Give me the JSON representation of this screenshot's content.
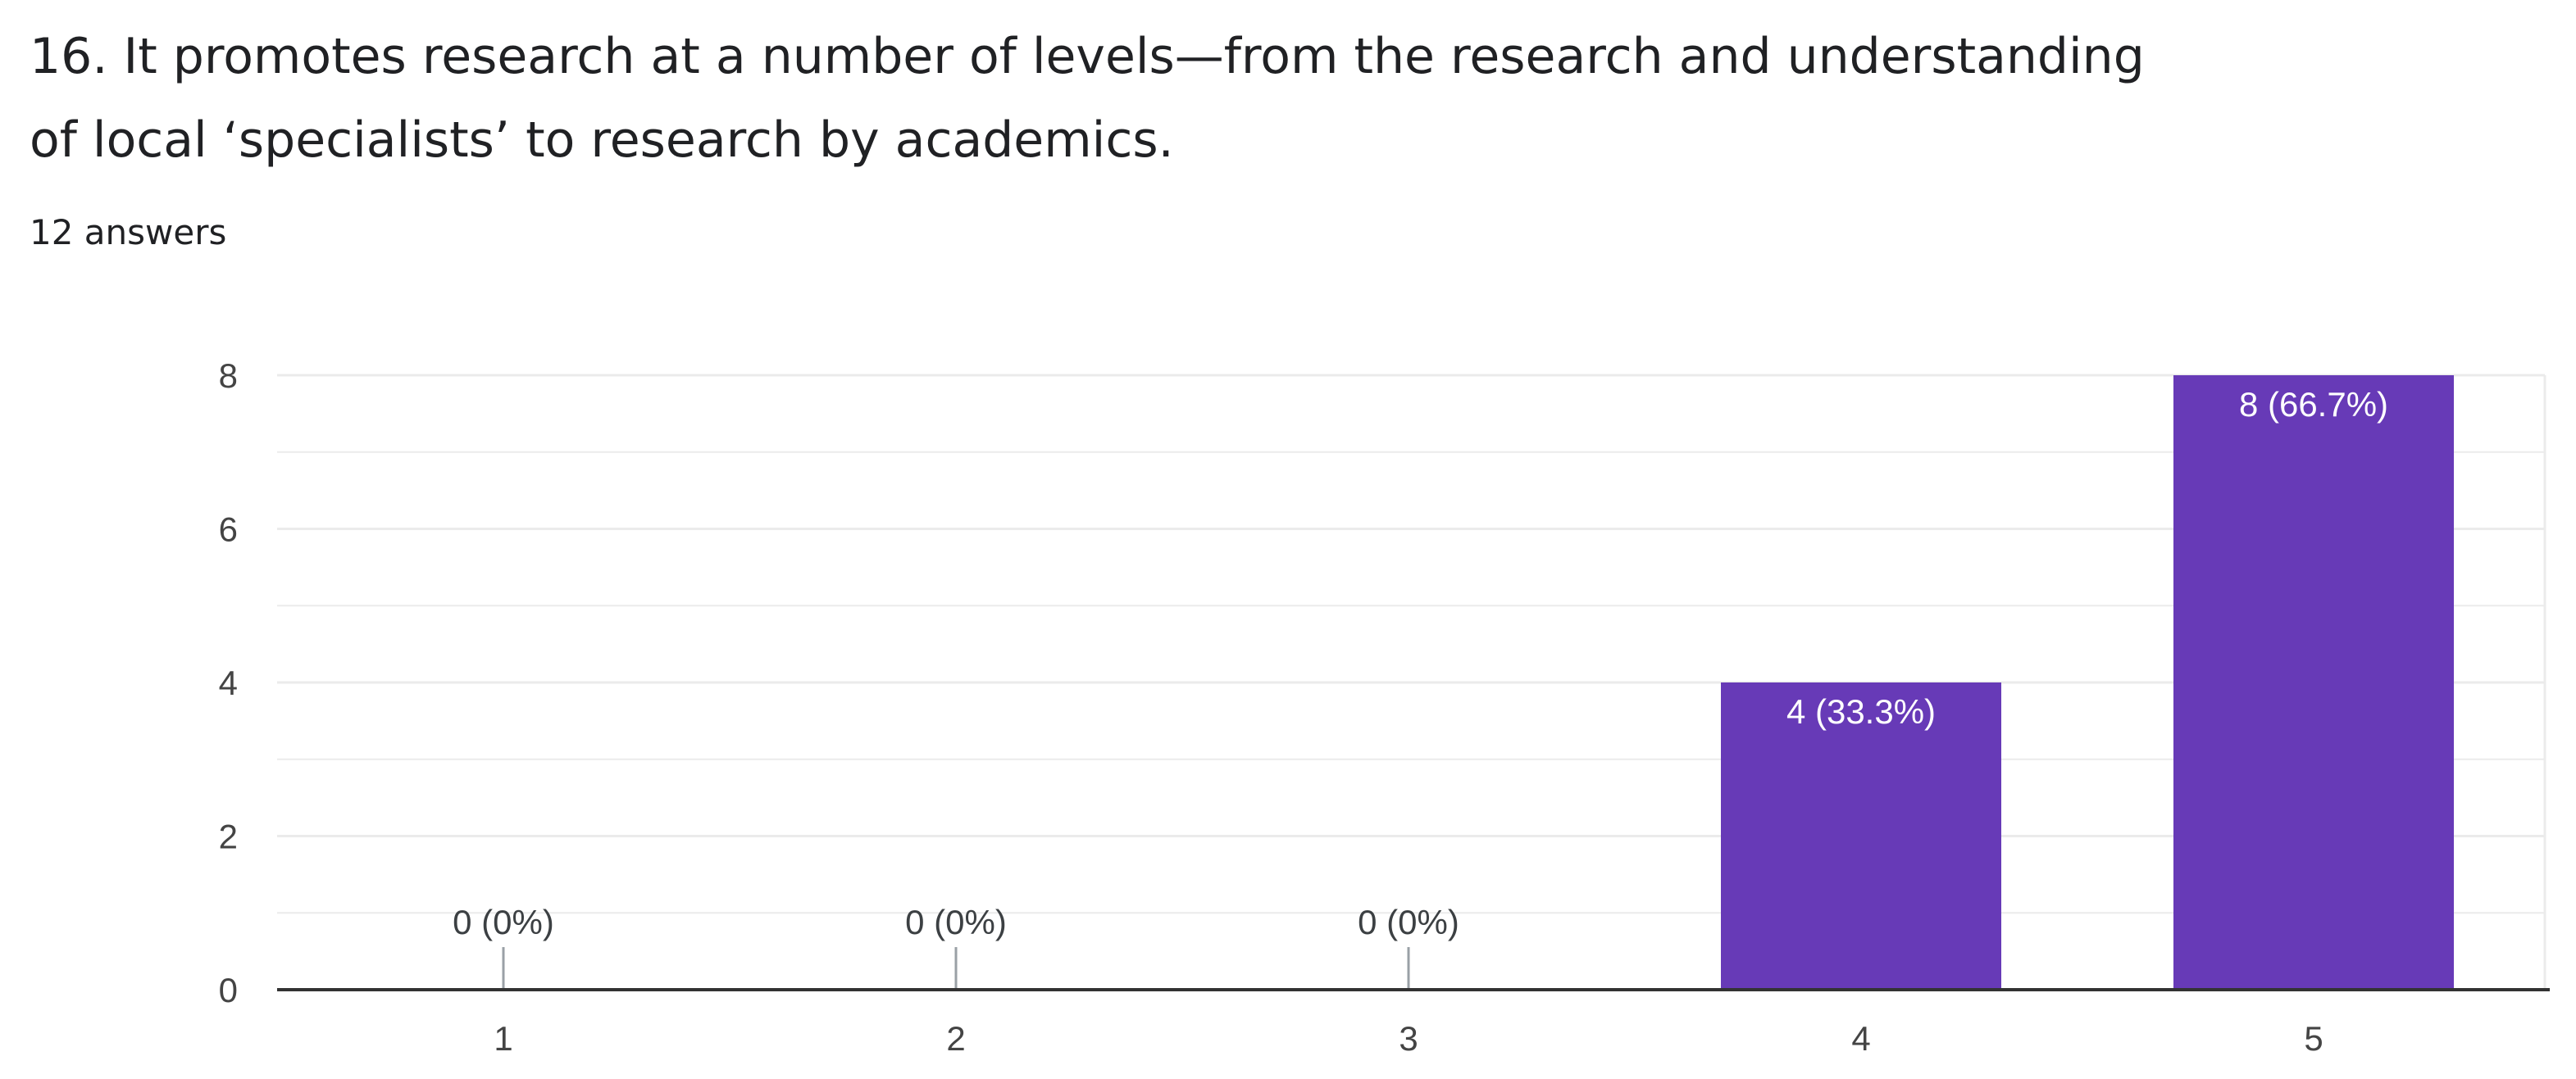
{
  "question": {
    "title_line_1": "16. It promotes research at a number of levels—from the research and understanding",
    "title_line_2": "of local ‘specialists’ to research by academics.",
    "response_count": "12 answers"
  },
  "colors": {
    "bar": "#673ab7",
    "bar_label_inside": "#ffffff",
    "bar_label_outside": "#3c4043",
    "axis_line": "#333333",
    "gridline": "#ebebeb",
    "tick_label": "#444444"
  },
  "chart_data": {
    "type": "bar",
    "title": "",
    "xlabel": "",
    "ylabel": "",
    "categories": [
      "1",
      "2",
      "3",
      "4",
      "5"
    ],
    "values": [
      0,
      0,
      0,
      4,
      8
    ],
    "data_labels": [
      "0 (0%)",
      "0 (0%)",
      "0 (0%)",
      "4 (33.3%)",
      "8 (66.7%)"
    ],
    "ylim": [
      0,
      8
    ],
    "yticks": [
      0,
      2,
      4,
      6,
      8
    ],
    "grid": true,
    "legend": "none"
  }
}
